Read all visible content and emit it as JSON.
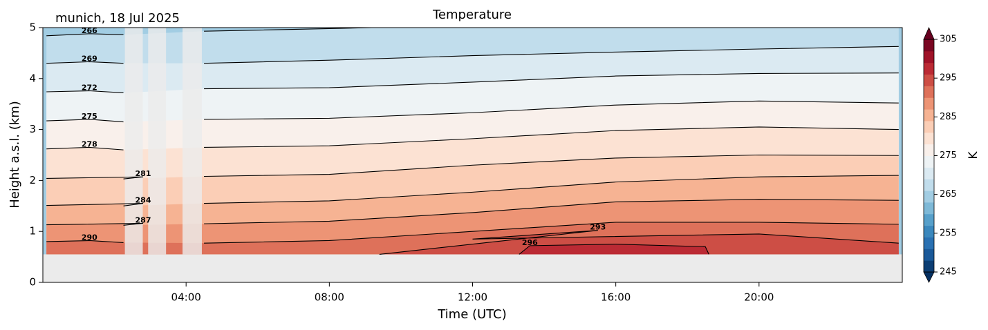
{
  "chart_data": {
    "type": "contour",
    "title": "Temperature",
    "annotation": "munich, 18 Jul 2025",
    "xlabel": "Time (UTC)",
    "ylabel": "Height a.s.l. (km)",
    "xlim": [
      0,
      24
    ],
    "ylim": [
      0,
      5
    ],
    "xticks": [
      {
        "value": 4,
        "label": "04:00"
      },
      {
        "value": 8,
        "label": "08:00"
      },
      {
        "value": 12,
        "label": "12:00"
      },
      {
        "value": 16,
        "label": "16:00"
      },
      {
        "value": 20,
        "label": "20:00"
      }
    ],
    "yticks": [
      0,
      1,
      2,
      3,
      4,
      5
    ],
    "fill_bottom": 0.55,
    "missing": [
      [
        2.29,
        2.79
      ],
      [
        2.94,
        3.44
      ],
      [
        3.9,
        4.44
      ]
    ],
    "colormap": [
      "#053061",
      "#2166ac",
      "#4393c3",
      "#92c5de",
      "#d1e5f0",
      "#f7f7f7",
      "#fddbc7",
      "#f4a582",
      "#d6604d",
      "#b2182b",
      "#67001f"
    ],
    "colorbar": {
      "label": "K",
      "lim": [
        245,
        305
      ],
      "step": 3,
      "ticks": [
        245,
        255,
        265,
        275,
        285,
        295,
        305
      ]
    },
    "contours": [
      {
        "level": 266,
        "x": [
          0.1,
          1.3,
          2.25,
          2.8,
          4.5,
          8,
          12,
          16,
          20,
          23.9
        ],
        "y": [
          4.84,
          4.88,
          4.86,
          null,
          4.93,
          4.98,
          5.05,
          5.1,
          5.15,
          5.2
        ]
      },
      {
        "level": 269,
        "x": [
          0.1,
          1.3,
          2.25,
          2.8,
          4.5,
          8,
          12,
          16,
          20,
          23.9
        ],
        "y": [
          4.3,
          4.33,
          4.3,
          null,
          4.3,
          4.36,
          4.45,
          4.52,
          4.58,
          4.63
        ]
      },
      {
        "level": 272,
        "x": [
          0.1,
          1.3,
          2.25,
          2.8,
          4.5,
          8,
          12,
          16,
          20,
          23.9
        ],
        "y": [
          3.74,
          3.76,
          3.72,
          null,
          3.8,
          3.82,
          3.93,
          4.05,
          4.1,
          4.11
        ]
      },
      {
        "level": 275,
        "x": [
          0.1,
          1.3,
          2.25,
          2.8,
          4.5,
          8,
          12,
          16,
          20,
          23.9
        ],
        "y": [
          3.17,
          3.2,
          3.15,
          null,
          3.2,
          3.22,
          3.33,
          3.48,
          3.56,
          3.52
        ]
      },
      {
        "level": 278,
        "x": [
          0.1,
          1.3,
          2.25,
          2.8,
          4.5,
          8,
          12,
          16,
          20,
          23.9
        ],
        "y": [
          2.62,
          2.65,
          2.6,
          null,
          2.65,
          2.68,
          2.82,
          2.98,
          3.05,
          3.0
        ]
      },
      {
        "level": 281,
        "x": [
          0.1,
          2.8,
          2.25,
          2.8,
          4.5,
          8,
          12,
          16,
          20,
          23.9
        ],
        "y": [
          2.04,
          2.07,
          2.03,
          null,
          2.08,
          2.12,
          2.3,
          2.44,
          2.5,
          2.49
        ]
      },
      {
        "level": 284,
        "x": [
          0.1,
          2.8,
          2.25,
          2.8,
          4.5,
          8,
          12,
          16,
          20,
          23.9
        ],
        "y": [
          1.51,
          1.55,
          1.5,
          null,
          1.55,
          1.6,
          1.77,
          1.97,
          2.07,
          2.1
        ]
      },
      {
        "level": 287,
        "x": [
          0.1,
          2.8,
          2.25,
          2.8,
          4.5,
          8,
          12,
          16,
          20,
          23.9
        ],
        "y": [
          1.13,
          1.16,
          1.12,
          null,
          1.15,
          1.2,
          1.37,
          1.58,
          1.63,
          1.61
        ]
      },
      {
        "level": 290,
        "x": [
          0.1,
          1.3,
          2.25,
          2.8,
          4.5,
          8,
          12,
          16,
          20,
          23.9
        ],
        "y": [
          0.8,
          0.82,
          0.78,
          null,
          0.77,
          0.82,
          1.0,
          1.18,
          1.18,
          1.14
        ]
      },
      {
        "level": 293,
        "x": [
          9.4,
          15.5,
          12,
          20,
          23.9
        ],
        "y": [
          0.55,
          1.02,
          0.85,
          0.95,
          0.77
        ]
      },
      {
        "level": 296,
        "x": [
          13.3,
          13.6,
          16,
          18.5,
          18.6
        ],
        "y": [
          0.55,
          0.72,
          0.75,
          0.7,
          0.55
        ]
      }
    ]
  }
}
